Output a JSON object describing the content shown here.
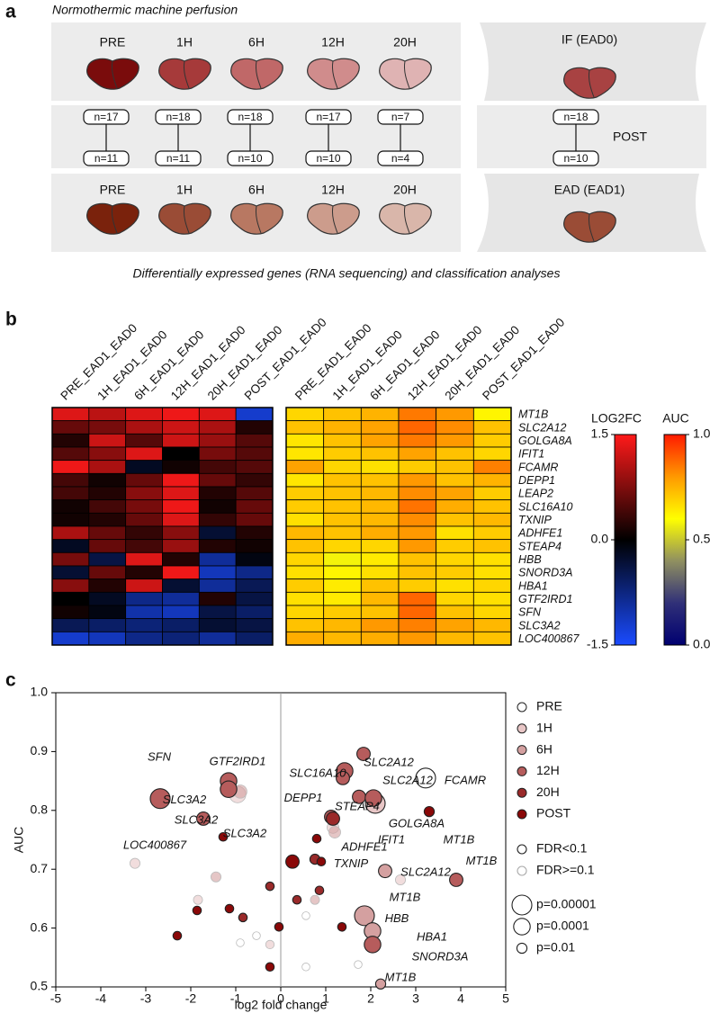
{
  "panel_labels": [
    "a",
    "b",
    "c"
  ],
  "diagram": {
    "subtitle": "Normothermic machine perfusion",
    "top_row": [
      {
        "label": "PRE",
        "color": "#7a0c0c"
      },
      {
        "label": "1H",
        "color": "#a63a3a"
      },
      {
        "label": "6H",
        "color": "#c06868"
      },
      {
        "label": "12H",
        "color": "#d08c8c"
      },
      {
        "label": "20H",
        "color": "#dfb3b3"
      }
    ],
    "top_right": {
      "label": "IF (EAD0)",
      "color": "#a84242"
    },
    "counts": [
      {
        "top": "n=17",
        "bottom": "n=11"
      },
      {
        "top": "n=18",
        "bottom": "n=11"
      },
      {
        "top": "n=18",
        "bottom": "n=10"
      },
      {
        "top": "n=17",
        "bottom": "n=10"
      },
      {
        "top": "n=7",
        "bottom": "n=4"
      },
      {
        "top": "n=18",
        "bottom": "n=10"
      }
    ],
    "post_label": "POST",
    "bottom_row": [
      {
        "label": "PRE",
        "color": "#7a220c"
      },
      {
        "label": "1H",
        "color": "#9a4c36"
      },
      {
        "label": "6H",
        "color": "#b87862"
      },
      {
        "label": "12H",
        "color": "#cc9c8c"
      },
      {
        "label": "20H",
        "color": "#d9b6aa"
      }
    ],
    "bottom_right": {
      "label": "EAD (EAD1)",
      "color": "#9a4c36"
    },
    "caption": "Differentially expressed genes (RNA sequencing) and classification analyses"
  },
  "chart_data": [
    {
      "type": "heatmap",
      "columns": [
        "PRE_EAD1_EAD0",
        "1H_EAD1_EAD0",
        "6H_EAD1_EAD0",
        "12H_EAD1_EAD0",
        "20H_EAD1_EAD0",
        "POST_EAD1_EAD0"
      ],
      "rows": [
        "MT1B",
        "SLC2A12",
        "GOLGA8A",
        "IFIT1",
        "FCAMR",
        "DEPP1",
        "LEAP2",
        "SLC16A10",
        "TXNIP",
        "ADHFE1",
        "STEAP4",
        "HBB",
        "SNORD3A",
        "HBA1",
        "GTF2IRD1",
        "SFN",
        "SLC3A2",
        "LOC400867"
      ],
      "values": [
        [
          1.3,
          1.1,
          1.3,
          1.4,
          1.3,
          -1.2
        ],
        [
          0.6,
          0.7,
          1.0,
          1.2,
          1.0,
          0.2
        ],
        [
          0.2,
          1.2,
          0.5,
          1.2,
          0.9,
          0.5
        ],
        [
          0.5,
          0.8,
          1.3,
          0.0,
          0.7,
          0.5
        ],
        [
          1.4,
          1.0,
          -0.2,
          0.1,
          0.4,
          0.5
        ],
        [
          0.4,
          0.1,
          0.6,
          1.4,
          0.6,
          0.3
        ],
        [
          0.4,
          0.2,
          0.8,
          1.3,
          0.2,
          0.5
        ],
        [
          0.1,
          0.4,
          0.7,
          1.4,
          0.1,
          0.6
        ],
        [
          0.1,
          0.2,
          0.6,
          1.3,
          0.3,
          0.6
        ],
        [
          1.0,
          0.6,
          0.3,
          0.8,
          -0.3,
          0.2
        ],
        [
          -0.2,
          0.6,
          0.4,
          0.9,
          0.2,
          0.1
        ],
        [
          0.7,
          -0.4,
          1.3,
          0.2,
          -0.9,
          -0.1
        ],
        [
          -0.3,
          0.6,
          0.2,
          1.4,
          -1.1,
          -0.8
        ],
        [
          0.8,
          0.2,
          1.2,
          -0.3,
          -0.9,
          -0.5
        ],
        [
          0.0,
          -0.2,
          -0.8,
          -0.9,
          0.2,
          -0.4
        ],
        [
          0.1,
          -0.1,
          -1.0,
          -1.1,
          -0.4,
          -0.6
        ],
        [
          -0.5,
          -0.6,
          -0.7,
          -0.6,
          -0.3,
          -0.4
        ],
        [
          -1.2,
          -1.1,
          -0.8,
          -0.7,
          -0.9,
          -0.6
        ]
      ],
      "colorbar": {
        "title": "LOG2FC",
        "lim": [
          -1.5,
          1.5
        ],
        "ticks": [
          1.5,
          {
            "value": 0,
            "label": "0.0"
          },
          -1.5
        ],
        "colors": [
          "#1a4bff",
          "#000000",
          "#ff1a1a"
        ]
      }
    },
    {
      "type": "heatmap",
      "columns": [
        "PRE_EAD1_EAD0",
        "1H_EAD1_EAD0",
        "6H_EAD1_EAD0",
        "12H_EAD1_EAD0",
        "20H_EAD1_EAD0",
        "POST_EAD1_EAD0"
      ],
      "values": [
        [
          0.68,
          0.72,
          0.75,
          0.85,
          0.8,
          0.62
        ],
        [
          0.72,
          0.75,
          0.78,
          0.88,
          0.82,
          0.72
        ],
        [
          0.65,
          0.72,
          0.78,
          0.85,
          0.8,
          0.7
        ],
        [
          0.65,
          0.7,
          0.72,
          0.78,
          0.72,
          0.68
        ],
        [
          0.78,
          0.68,
          0.66,
          0.7,
          0.72,
          0.84
        ],
        [
          0.65,
          0.72,
          0.72,
          0.8,
          0.72,
          0.75
        ],
        [
          0.7,
          0.72,
          0.74,
          0.82,
          0.78,
          0.7
        ],
        [
          0.7,
          0.72,
          0.74,
          0.86,
          0.76,
          0.72
        ],
        [
          0.66,
          0.72,
          0.74,
          0.82,
          0.72,
          0.74
        ],
        [
          0.74,
          0.72,
          0.76,
          0.8,
          0.66,
          0.7
        ],
        [
          0.72,
          0.68,
          0.68,
          0.8,
          0.7,
          0.72
        ],
        [
          0.68,
          0.58,
          0.64,
          0.72,
          0.68,
          0.66
        ],
        [
          0.66,
          0.62,
          0.66,
          0.72,
          0.7,
          0.66
        ],
        [
          0.7,
          0.64,
          0.72,
          0.7,
          0.66,
          0.68
        ],
        [
          0.66,
          0.64,
          0.74,
          0.88,
          0.68,
          0.66
        ],
        [
          0.68,
          0.7,
          0.72,
          0.88,
          0.72,
          0.68
        ],
        [
          0.72,
          0.74,
          0.8,
          0.84,
          0.78,
          0.74
        ],
        [
          0.76,
          0.74,
          0.76,
          0.8,
          0.74,
          0.72
        ]
      ],
      "colorbar": {
        "title": "AUC",
        "lim": [
          0,
          1
        ],
        "ticks": [
          {
            "value": 1,
            "label": "1.0"
          },
          0.5,
          {
            "value": 0,
            "label": "0.0"
          }
        ],
        "colors": [
          "#000070",
          "#303078",
          "#909060",
          "#ffff00",
          "#ff9900",
          "#ff1a00"
        ]
      }
    },
    {
      "type": "scatter",
      "xlabel": "log2 fold change",
      "ylabel": "AUC",
      "xlim": [
        -5,
        5
      ],
      "ylim": [
        0.5,
        1.0
      ],
      "xticks": [
        -5,
        -4,
        -3,
        -2,
        -1,
        0,
        1,
        2,
        3,
        4,
        5
      ],
      "yticks": [
        0.5,
        0.6,
        0.7,
        0.8,
        0.9,
        {
          "value": 1,
          "label": "1.0"
        }
      ],
      "zero_line": true,
      "series": [
        {
          "name": "PRE",
          "color": "#ffffff",
          "x": [
            3.22,
            -0.54,
            0.56,
            1.72,
            0.56,
            -0.9
          ],
          "values": [
            0.855,
            0.587,
            0.621,
            0.538,
            0.534,
            0.575
          ],
          "p": [
            1e-05,
            0.05,
            0.05,
            0.05,
            0.05,
            0.05
          ],
          "significant": [
            true,
            false,
            false,
            false,
            false,
            false
          ]
        },
        {
          "name": "1H",
          "color": "#e8c6c6",
          "x": [
            2.1,
            -0.96,
            2.66,
            1.16,
            -3.24,
            -1.84,
            -0.24
          ],
          "values": [
            0.812,
            0.827,
            0.682,
            0.771,
            0.71,
            0.648,
            0.572
          ],
          "p": [
            1e-05,
            0.0001,
            0.01,
            0.003,
            0.01,
            0.02,
            0.03
          ],
          "significant": [
            true,
            false,
            false,
            false,
            false,
            false,
            false
          ]
        },
        {
          "name": "6H",
          "color": "#d4a0a0",
          "x": [
            2.32,
            1.86,
            2.04,
            2.22,
            -0.9,
            1.2,
            -1.44,
            0.76
          ],
          "values": [
            0.697,
            0.621,
            0.595,
            0.505,
            0.832,
            0.763,
            0.687,
            0.648
          ],
          "p": [
            0.001,
            1e-05,
            0.0001,
            0.01,
            0.001,
            0.003,
            0.01,
            0.02
          ],
          "significant": [
            true,
            true,
            true,
            true,
            false,
            false,
            false,
            false
          ]
        },
        {
          "name": "12H",
          "color": "#b65c5c",
          "x": [
            -2.68,
            -1.16,
            -1.16,
            -1.72,
            1.84,
            1.42,
            1.38,
            1.74,
            2.06,
            1.12,
            3.9,
            2.04
          ],
          "values": [
            0.82,
            0.85,
            0.836,
            0.786,
            0.896,
            0.867,
            0.855,
            0.823,
            0.821,
            0.789,
            0.682,
            0.572
          ],
          "p": [
            1e-05,
            0.0001,
            0.0001,
            0.001,
            0.001,
            0.0001,
            0.001,
            0.001,
            0.0001,
            0.001,
            0.001,
            0.0001
          ],
          "significant": [
            true,
            true,
            true,
            true,
            true,
            true,
            true,
            true,
            true,
            true,
            true,
            true
          ]
        },
        {
          "name": "20H",
          "color": "#9a2a2a",
          "x": [
            1.16,
            0.76,
            -0.24,
            0.36,
            -0.84,
            0.86
          ],
          "values": [
            0.786,
            0.717,
            0.671,
            0.648,
            0.618,
            0.664
          ],
          "p": [
            0.001,
            0.01,
            0.03,
            0.03,
            0.03,
            0.03
          ],
          "significant": [
            true,
            true,
            true,
            true,
            true,
            true
          ]
        },
        {
          "name": "POST",
          "color": "#8a0808",
          "x": [
            3.3,
            0.8,
            -1.28,
            0.9,
            -1.86,
            -2.3,
            0.26,
            -0.04,
            -1.14,
            1.36,
            -0.24
          ],
          "values": [
            0.798,
            0.752,
            0.755,
            0.713,
            0.63,
            0.587,
            0.713,
            0.602,
            0.633,
            0.602,
            0.534
          ],
          "p": [
            0.01,
            0.03,
            0.03,
            0.03,
            0.03,
            0.03,
            0.001,
            0.03,
            0.03,
            0.03,
            0.03
          ],
          "significant": [
            true,
            true,
            true,
            true,
            true,
            true,
            true,
            true,
            true,
            true,
            true
          ]
        }
      ],
      "annotations": [
        {
          "text": "SFN",
          "x": -2.7,
          "y": 0.89
        },
        {
          "text": "GTF2IRD1",
          "x": -0.96,
          "y": 0.882
        },
        {
          "text": "SLC3A2",
          "x": -2.14,
          "y": 0.817
        },
        {
          "text": "SLC3A2",
          "x": -1.88,
          "y": 0.783
        },
        {
          "text": "SLC3A2",
          "x": -0.8,
          "y": 0.76
        },
        {
          "text": "LOC400867",
          "x": -2.8,
          "y": 0.74
        },
        {
          "text": "SLC16A10",
          "x": 0.82,
          "y": 0.862
        },
        {
          "text": "SLC2A12",
          "x": 2.4,
          "y": 0.881
        },
        {
          "text": "SLC2A12",
          "x": 2.82,
          "y": 0.85
        },
        {
          "text": "DEPP1",
          "x": 0.5,
          "y": 0.82
        },
        {
          "text": "STEAP4",
          "x": 1.7,
          "y": 0.806
        },
        {
          "text": "FCAMR",
          "x": 4.1,
          "y": 0.85
        },
        {
          "text": "GOLGA8A",
          "x": 3.02,
          "y": 0.777
        },
        {
          "text": "IFIT1",
          "x": 2.46,
          "y": 0.749
        },
        {
          "text": "MT1B",
          "x": 3.96,
          "y": 0.749
        },
        {
          "text": "ADHFE1",
          "x": 1.86,
          "y": 0.737
        },
        {
          "text": "TXNIP",
          "x": 1.56,
          "y": 0.709
        },
        {
          "text": "SLC2A12",
          "x": 3.22,
          "y": 0.694
        },
        {
          "text": "MT1B",
          "x": 2.76,
          "y": 0.651
        },
        {
          "text": "MT1B",
          "x": 4.46,
          "y": 0.713
        },
        {
          "text": "HBB",
          "x": 2.58,
          "y": 0.615
        },
        {
          "text": "HBA1",
          "x": 3.36,
          "y": 0.584
        },
        {
          "text": "SNORD3A",
          "x": 3.54,
          "y": 0.55
        },
        {
          "text": "MT1B",
          "x": 2.66,
          "y": 0.515
        }
      ],
      "fdr_legend": [
        "FDR<0.1",
        "FDR>=0.1"
      ],
      "size_legend": [
        {
          "value": 1e-05,
          "label": "p=0.00001"
        },
        {
          "value": 0.0001,
          "label": "p=0.0001"
        },
        {
          "value": 0.01,
          "label": "p=0.01"
        }
      ]
    }
  ]
}
